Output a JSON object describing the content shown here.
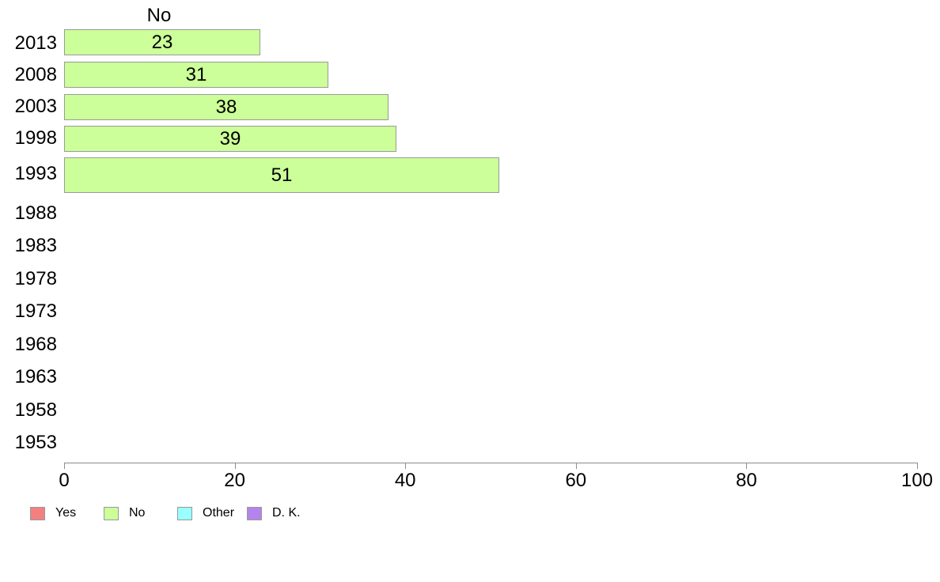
{
  "title": "No",
  "chart_data": {
    "type": "bar",
    "orientation": "horizontal",
    "title": "No",
    "categories": [
      "2013",
      "2008",
      "2003",
      "1998",
      "1993",
      "1988",
      "1983",
      "1978",
      "1973",
      "1968",
      "1963",
      "1958",
      "1953"
    ],
    "series": [
      {
        "name": "No",
        "color": "#CCFF99",
        "values": [
          23,
          31,
          38,
          39,
          51,
          null,
          null,
          null,
          null,
          null,
          null,
          null,
          null
        ]
      }
    ],
    "bar_value_labels": [
      23,
      31,
      38,
      39,
      51
    ],
    "xlabel": "",
    "ylabel": "",
    "xlim": [
      0,
      100
    ],
    "x_ticks": [
      0,
      20,
      40,
      60,
      80,
      100
    ],
    "grid": false,
    "legend_position": "bottom"
  },
  "legend": {
    "items": [
      {
        "label": "Yes",
        "color": "#F28080"
      },
      {
        "label": "No",
        "color": "#CCFF99"
      },
      {
        "label": "Other",
        "color": "#99FFFF"
      },
      {
        "label": "D. K.",
        "color": "#B484EC"
      }
    ]
  },
  "colors": {
    "bar_fill": "#CCFF99",
    "bar_border": "#9A9A9A",
    "axis": "#8C8C8C",
    "text": "#000000",
    "background": "#FFFFFF"
  }
}
